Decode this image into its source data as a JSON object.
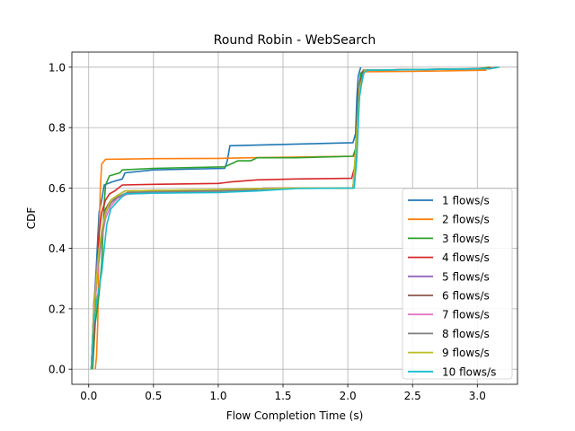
{
  "chart_data": {
    "type": "line",
    "title": "Round Robin - WebSearch",
    "xlabel": "Flow Completion Time (s)",
    "ylabel": "CDF",
    "xlim": [
      -0.13,
      3.31
    ],
    "ylim": [
      -0.05,
      1.05
    ],
    "x_ticks": [
      0.0,
      0.5,
      1.0,
      1.5,
      2.0,
      2.5,
      3.0
    ],
    "x_tick_labels": [
      "0.0",
      "0.5",
      "1.0",
      "1.5",
      "2.0",
      "2.5",
      "3.0"
    ],
    "y_ticks": [
      0.0,
      0.2,
      0.4,
      0.6,
      0.8,
      1.0
    ],
    "y_tick_labels": [
      "0.0",
      "0.2",
      "0.4",
      "0.6",
      "0.8",
      "1.0"
    ],
    "grid": true,
    "legend_position": "lower-right",
    "series": [
      {
        "name": "1 flows/s",
        "color": "#1f77b4",
        "points": [
          [
            0.02,
            0.0
          ],
          [
            0.04,
            0.2
          ],
          [
            0.06,
            0.35
          ],
          [
            0.08,
            0.52
          ],
          [
            0.1,
            0.56
          ],
          [
            0.12,
            0.61
          ],
          [
            0.18,
            0.62
          ],
          [
            0.26,
            0.63
          ],
          [
            0.28,
            0.65
          ],
          [
            0.5,
            0.66
          ],
          [
            1.05,
            0.665
          ],
          [
            1.07,
            0.69
          ],
          [
            1.09,
            0.74
          ],
          [
            2.04,
            0.75
          ],
          [
            2.06,
            0.78
          ],
          [
            2.07,
            0.9
          ],
          [
            2.08,
            0.97
          ],
          [
            2.1,
            1.0
          ]
        ]
      },
      {
        "name": "2 flows/s",
        "color": "#ff7f0e",
        "points": [
          [
            0.05,
            0.0
          ],
          [
            0.06,
            0.04
          ],
          [
            0.07,
            0.15
          ],
          [
            0.08,
            0.45
          ],
          [
            0.09,
            0.6
          ],
          [
            0.1,
            0.68
          ],
          [
            0.13,
            0.695
          ],
          [
            0.5,
            0.697
          ],
          [
            1.0,
            0.698
          ],
          [
            1.25,
            0.7
          ],
          [
            2.05,
            0.705
          ],
          [
            2.06,
            0.72
          ],
          [
            2.07,
            0.8
          ],
          [
            2.09,
            0.95
          ],
          [
            2.11,
            0.985
          ],
          [
            2.5,
            0.986
          ],
          [
            3.07,
            0.99
          ]
        ]
      },
      {
        "name": "3 flows/s",
        "color": "#2ca02c",
        "points": [
          [
            0.03,
            0.0
          ],
          [
            0.05,
            0.15
          ],
          [
            0.08,
            0.25
          ],
          [
            0.1,
            0.35
          ],
          [
            0.12,
            0.55
          ],
          [
            0.13,
            0.61
          ],
          [
            0.16,
            0.64
          ],
          [
            0.24,
            0.65
          ],
          [
            0.26,
            0.66
          ],
          [
            0.5,
            0.665
          ],
          [
            1.05,
            0.67
          ],
          [
            1.1,
            0.68
          ],
          [
            1.15,
            0.69
          ],
          [
            1.25,
            0.69
          ],
          [
            1.3,
            0.7
          ],
          [
            1.6,
            0.7
          ],
          [
            2.04,
            0.705
          ],
          [
            2.06,
            0.73
          ],
          [
            2.08,
            0.9
          ],
          [
            2.1,
            0.98
          ],
          [
            2.14,
            0.99
          ],
          [
            3.0,
            0.995
          ],
          [
            3.1,
            1.0
          ]
        ]
      },
      {
        "name": "4 flows/s",
        "color": "#d62728",
        "points": [
          [
            0.02,
            0.0
          ],
          [
            0.04,
            0.1
          ],
          [
            0.06,
            0.3
          ],
          [
            0.08,
            0.45
          ],
          [
            0.1,
            0.52
          ],
          [
            0.13,
            0.56
          ],
          [
            0.16,
            0.58
          ],
          [
            0.2,
            0.59
          ],
          [
            0.26,
            0.61
          ],
          [
            0.5,
            0.612
          ],
          [
            1.0,
            0.615
          ],
          [
            1.1,
            0.62
          ],
          [
            1.3,
            0.627
          ],
          [
            1.6,
            0.63
          ],
          [
            2.03,
            0.632
          ],
          [
            2.06,
            0.68
          ],
          [
            2.08,
            0.85
          ],
          [
            2.1,
            0.96
          ],
          [
            2.13,
            0.99
          ],
          [
            3.05,
            0.995
          ],
          [
            3.15,
            1.0
          ]
        ]
      },
      {
        "name": "5 flows/s",
        "color": "#9467bd",
        "points": [
          [
            0.02,
            0.0
          ],
          [
            0.04,
            0.2
          ],
          [
            0.06,
            0.33
          ],
          [
            0.08,
            0.4
          ],
          [
            0.1,
            0.45
          ],
          [
            0.12,
            0.5
          ],
          [
            0.15,
            0.54
          ],
          [
            0.2,
            0.565
          ],
          [
            0.28,
            0.58
          ],
          [
            0.5,
            0.585
          ],
          [
            1.0,
            0.587
          ],
          [
            1.25,
            0.59
          ],
          [
            1.35,
            0.6
          ],
          [
            2.04,
            0.6
          ],
          [
            2.06,
            0.7
          ],
          [
            2.08,
            0.9
          ],
          [
            2.12,
            0.99
          ],
          [
            3.1,
            0.995
          ],
          [
            3.15,
            1.0
          ]
        ]
      },
      {
        "name": "6 flows/s",
        "color": "#8c564b",
        "points": [
          [
            0.02,
            0.0
          ],
          [
            0.04,
            0.22
          ],
          [
            0.06,
            0.3
          ],
          [
            0.08,
            0.38
          ],
          [
            0.1,
            0.45
          ],
          [
            0.13,
            0.53
          ],
          [
            0.17,
            0.56
          ],
          [
            0.22,
            0.575
          ],
          [
            0.28,
            0.59
          ],
          [
            0.5,
            0.592
          ],
          [
            1.0,
            0.594
          ],
          [
            1.3,
            0.598
          ],
          [
            1.6,
            0.6
          ],
          [
            2.04,
            0.6
          ],
          [
            2.06,
            0.72
          ],
          [
            2.08,
            0.92
          ],
          [
            2.12,
            0.99
          ],
          [
            3.1,
            0.995
          ],
          [
            3.15,
            1.0
          ]
        ]
      },
      {
        "name": "7 flows/s",
        "color": "#e377c2",
        "points": [
          [
            0.02,
            0.0
          ],
          [
            0.04,
            0.18
          ],
          [
            0.06,
            0.28
          ],
          [
            0.08,
            0.36
          ],
          [
            0.1,
            0.43
          ],
          [
            0.13,
            0.5
          ],
          [
            0.17,
            0.54
          ],
          [
            0.22,
            0.565
          ],
          [
            0.3,
            0.58
          ],
          [
            0.5,
            0.583
          ],
          [
            1.0,
            0.586
          ],
          [
            1.2,
            0.59
          ],
          [
            1.3,
            0.598
          ],
          [
            1.5,
            0.6
          ],
          [
            2.04,
            0.6
          ],
          [
            2.06,
            0.71
          ],
          [
            2.09,
            0.93
          ],
          [
            2.13,
            0.99
          ],
          [
            3.1,
            0.995
          ],
          [
            3.15,
            1.0
          ]
        ]
      },
      {
        "name": "8 flows/s",
        "color": "#7f7f7f",
        "points": [
          [
            0.02,
            0.0
          ],
          [
            0.04,
            0.2
          ],
          [
            0.06,
            0.3
          ],
          [
            0.08,
            0.38
          ],
          [
            0.1,
            0.44
          ],
          [
            0.13,
            0.52
          ],
          [
            0.17,
            0.55
          ],
          [
            0.22,
            0.57
          ],
          [
            0.3,
            0.585
          ],
          [
            0.5,
            0.588
          ],
          [
            1.0,
            0.59
          ],
          [
            1.3,
            0.595
          ],
          [
            1.6,
            0.6
          ],
          [
            2.04,
            0.6
          ],
          [
            2.06,
            0.7
          ],
          [
            2.09,
            0.92
          ],
          [
            2.13,
            0.99
          ],
          [
            3.1,
            0.995
          ],
          [
            3.15,
            1.0
          ]
        ]
      },
      {
        "name": "9 flows/s",
        "color": "#bcbd22",
        "points": [
          [
            0.02,
            0.0
          ],
          [
            0.04,
            0.2
          ],
          [
            0.06,
            0.3
          ],
          [
            0.08,
            0.4
          ],
          [
            0.1,
            0.46
          ],
          [
            0.13,
            0.52
          ],
          [
            0.17,
            0.56
          ],
          [
            0.22,
            0.575
          ],
          [
            0.28,
            0.59
          ],
          [
            0.5,
            0.592
          ],
          [
            1.0,
            0.595
          ],
          [
            1.3,
            0.598
          ],
          [
            1.6,
            0.6
          ],
          [
            2.04,
            0.6
          ],
          [
            2.06,
            0.72
          ],
          [
            2.09,
            0.93
          ],
          [
            2.13,
            0.99
          ],
          [
            3.1,
            0.995
          ],
          [
            3.17,
            1.0
          ]
        ]
      },
      {
        "name": "10 flows/s",
        "color": "#17becf",
        "points": [
          [
            0.02,
            0.0
          ],
          [
            0.04,
            0.15
          ],
          [
            0.06,
            0.22
          ],
          [
            0.08,
            0.27
          ],
          [
            0.1,
            0.32
          ],
          [
            0.12,
            0.4
          ],
          [
            0.14,
            0.48
          ],
          [
            0.17,
            0.53
          ],
          [
            0.22,
            0.555
          ],
          [
            0.28,
            0.58
          ],
          [
            0.5,
            0.583
          ],
          [
            1.0,
            0.585
          ],
          [
            1.3,
            0.59
          ],
          [
            1.6,
            0.598
          ],
          [
            2.03,
            0.6
          ],
          [
            2.05,
            0.6
          ],
          [
            2.07,
            0.7
          ],
          [
            2.09,
            0.9
          ],
          [
            2.12,
            0.98
          ],
          [
            2.15,
            0.99
          ],
          [
            3.1,
            0.995
          ],
          [
            3.17,
            1.0
          ]
        ]
      }
    ]
  }
}
